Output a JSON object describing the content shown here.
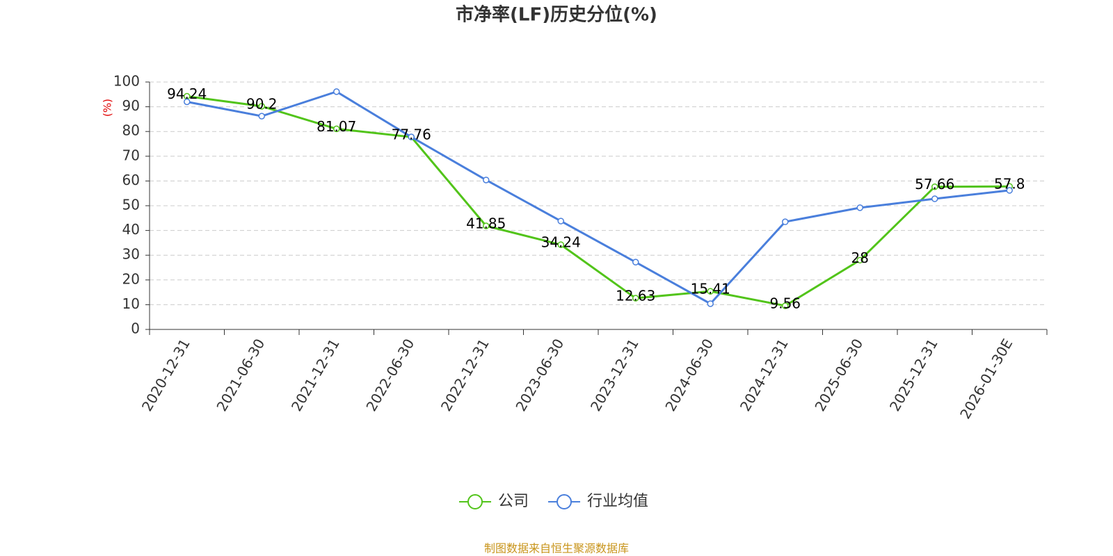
{
  "chart_data": {
    "type": "line",
    "title": "市净率(LF)历史分位(%)",
    "y_axis_label": "(%)",
    "categories": [
      "2020-12-31",
      "2021-06-30",
      "2021-12-31",
      "2022-06-30",
      "2022-12-31",
      "2023-06-30",
      "2023-12-31",
      "2024-06-30",
      "2024-12-31",
      "2025-06-30",
      "2025-12-31",
      "2026-01-30E"
    ],
    "series": [
      {
        "name": "公司",
        "color": "#52c41a",
        "data_labels": true,
        "values": [
          94.24,
          90.2,
          81.07,
          77.76,
          41.85,
          34.24,
          12.63,
          15.41,
          9.56,
          28,
          57.66,
          57.8
        ]
      },
      {
        "name": "行业均值",
        "color": "#4a7fdc",
        "data_labels": false,
        "values": [
          92,
          86.2,
          96.1,
          77.8,
          60.4,
          43.8,
          27.2,
          10.4,
          43.5,
          49.2,
          52.8,
          56.2
        ]
      }
    ],
    "ylim": [
      0,
      100
    ],
    "yticks": [
      0,
      10,
      20,
      30,
      40,
      50,
      60,
      70,
      80,
      90,
      100
    ],
    "grid": true,
    "legend": "bottom",
    "source": "制图数据来自恒生聚源数据库"
  }
}
